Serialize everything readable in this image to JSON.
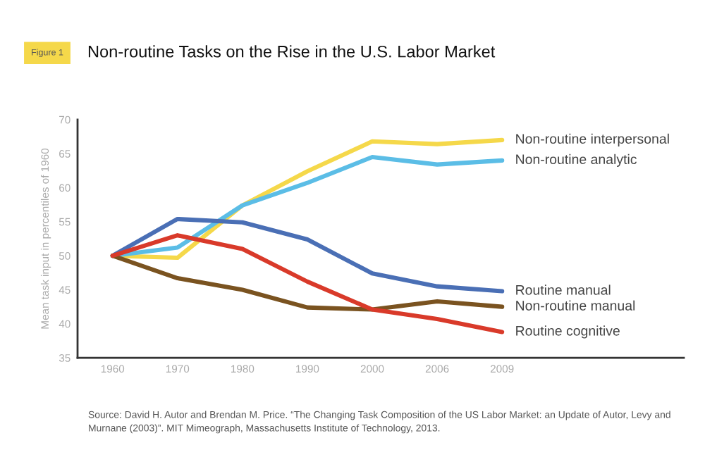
{
  "chart_data": {
    "type": "line",
    "title": "Non-routine Tasks on the Rise in the U.S. Labor Market",
    "ylabel": "Mean task input in percentiles of 1960",
    "categories": [
      "1960",
      "1970",
      "1980",
      "1990",
      "2000",
      "2006",
      "2009"
    ],
    "series": [
      {
        "name": "Non-routine interpersonal",
        "color": "#f5d84a",
        "values": [
          50,
          49.7,
          57.4,
          62.4,
          66.8,
          66.4,
          67.0
        ]
      },
      {
        "name": "Non-routine analytic",
        "color": "#5bbde6",
        "values": [
          50,
          51.2,
          57.4,
          60.7,
          64.5,
          63.4,
          64.0
        ]
      },
      {
        "name": "Routine manual",
        "color": "#4a6fb5",
        "values": [
          50,
          55.4,
          54.9,
          52.4,
          47.4,
          45.5,
          44.8
        ]
      },
      {
        "name": "Non-routine manual",
        "color": "#7a5320",
        "values": [
          50,
          46.7,
          45.0,
          42.4,
          42.1,
          43.3,
          42.5
        ]
      },
      {
        "name": "Routine cognitive",
        "color": "#d93a2a",
        "values": [
          50,
          53.0,
          51.0,
          46.2,
          42.1,
          40.7,
          38.8
        ]
      }
    ],
    "ylim": [
      35,
      70
    ],
    "yticks": [
      35,
      40,
      45,
      50,
      55,
      60,
      65,
      70
    ],
    "grid": false,
    "legend": false,
    "annotations": [
      "Figure 1",
      "Source: David H. Autor and Brendan M. Price. “The Changing Task Composition of the US Labor Market: an Update of Autor, Levy and Murnane (2003)”. MIT Mimeograph, Massachusetts Institute of Technology, 2013."
    ]
  }
}
